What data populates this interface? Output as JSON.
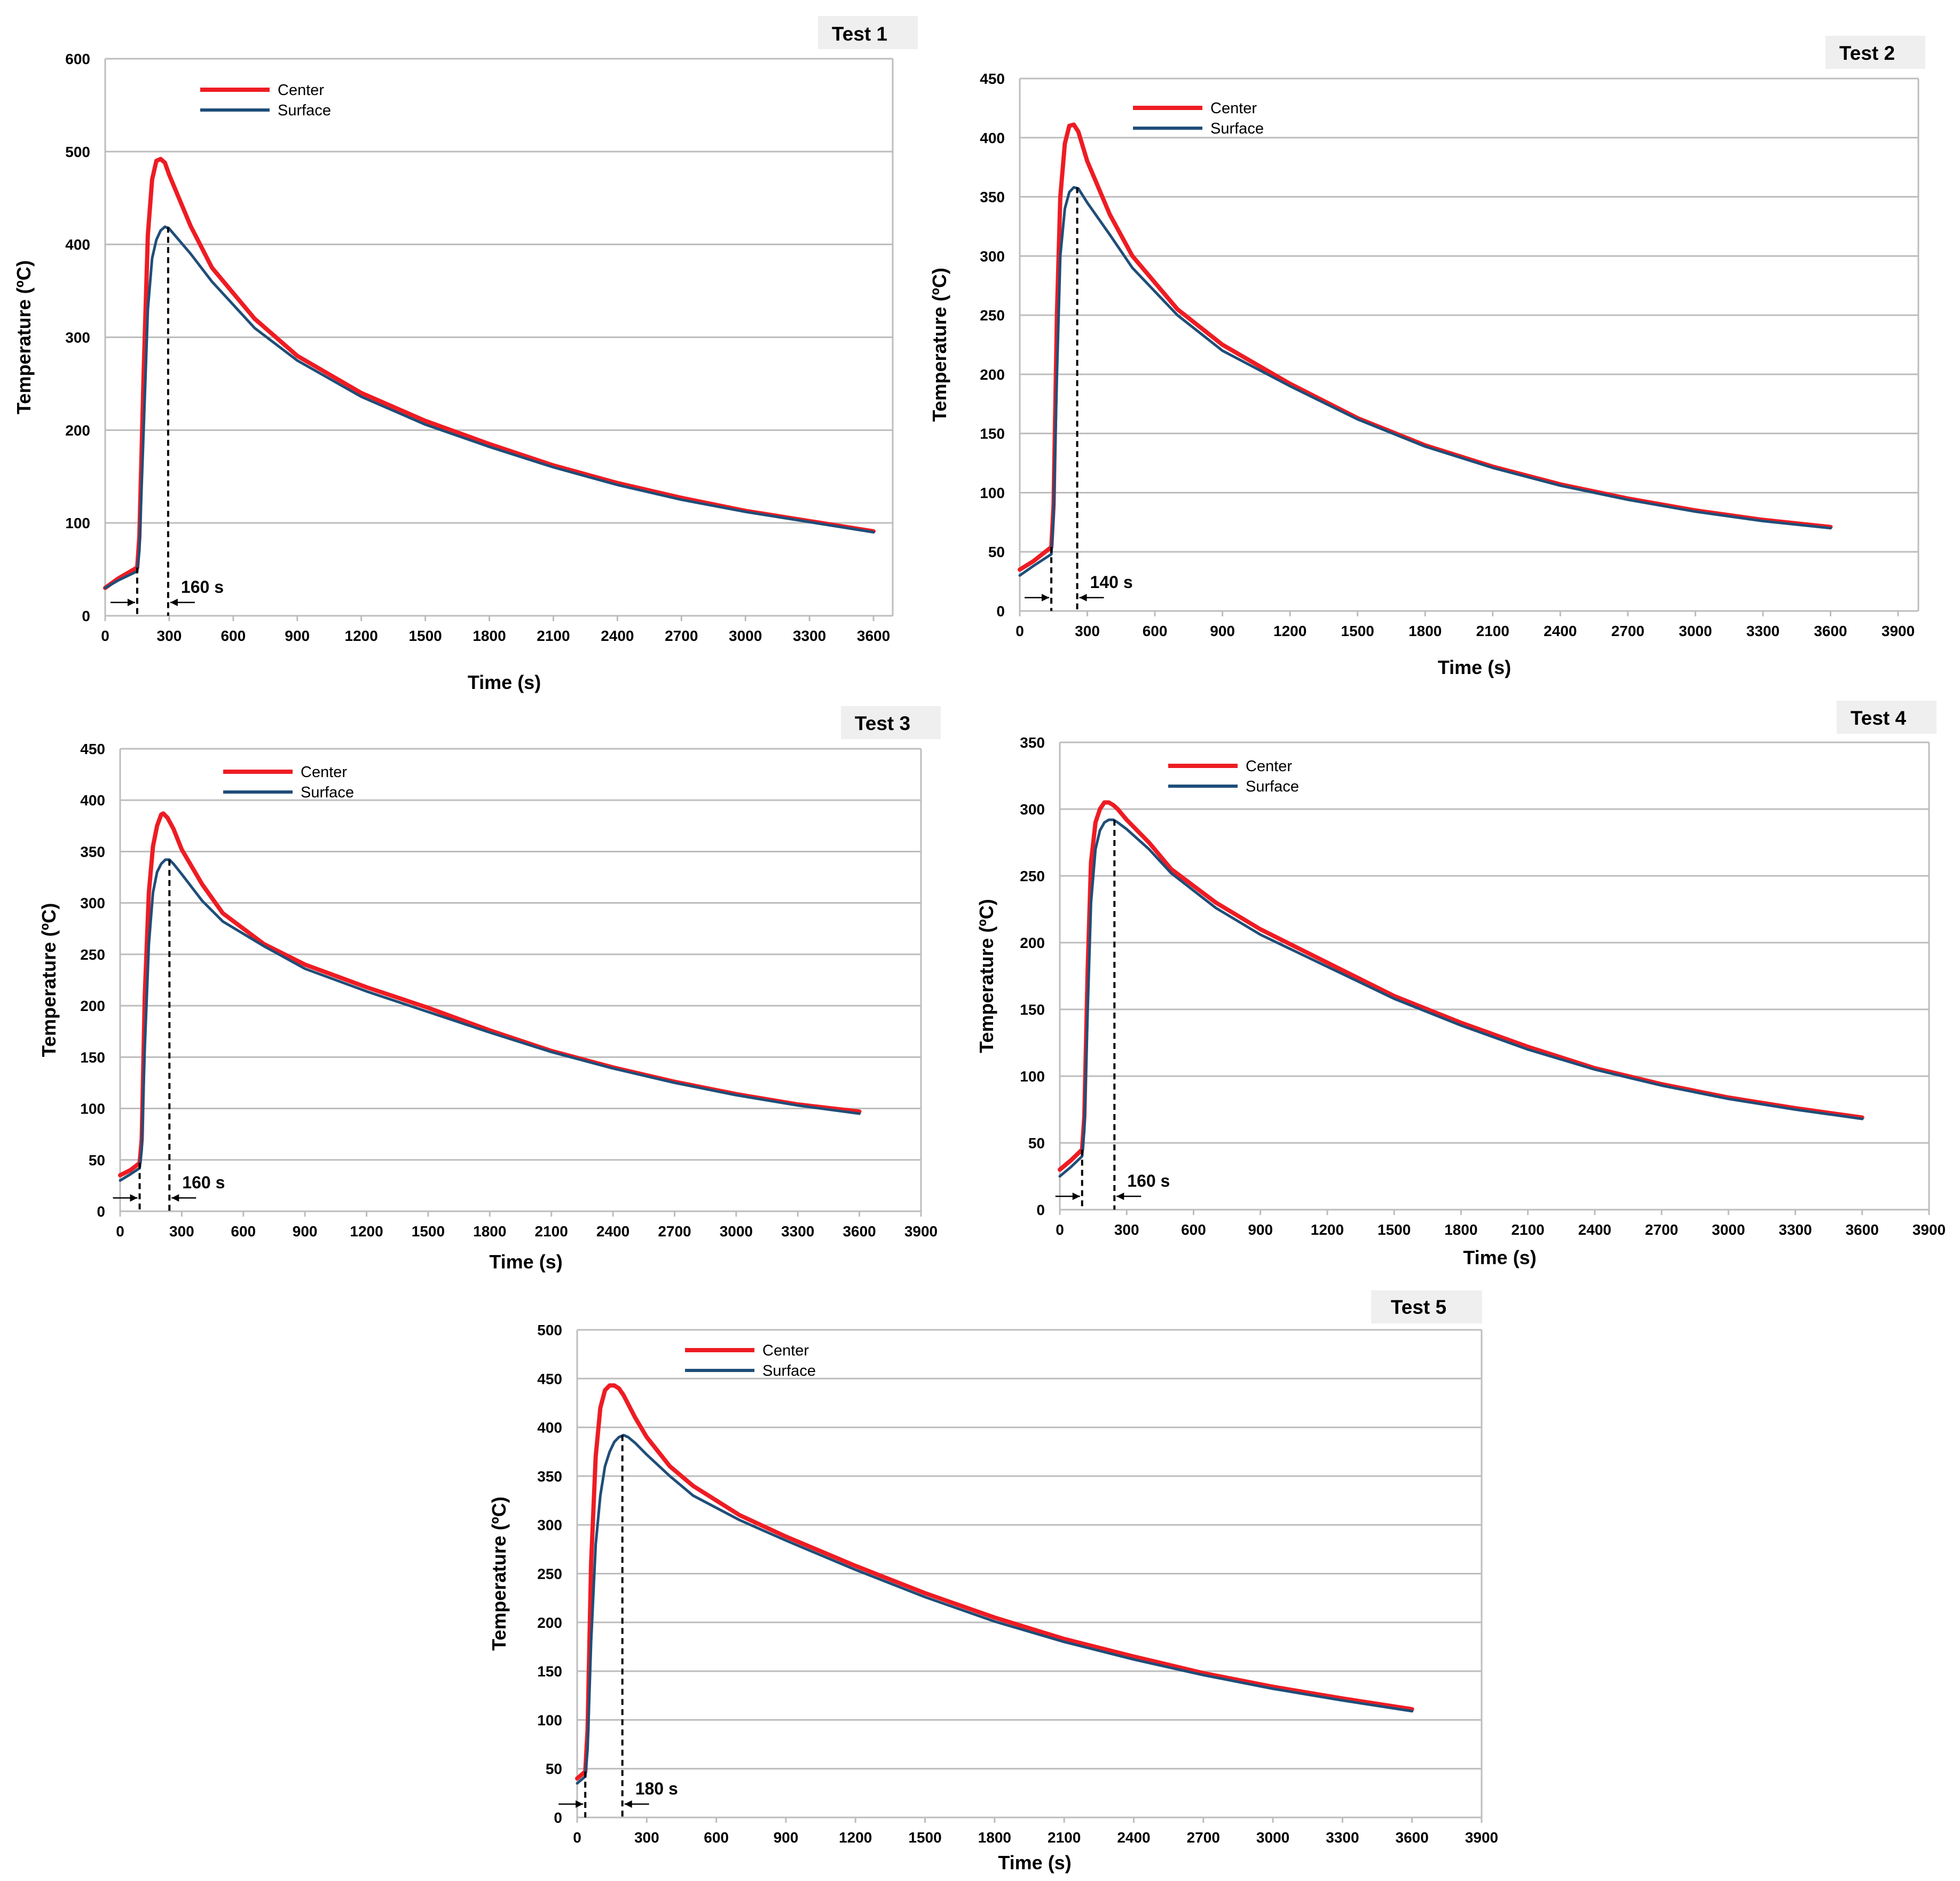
{
  "colors": {
    "center": "#ee1c23",
    "surface": "#1f4e79",
    "grid": "#bdbdbd"
  },
  "chart_data": [
    {
      "type": "line",
      "title": "Test 1",
      "xlabel": "Time (s)",
      "ylabel": "Temperature (ºC)",
      "xlim": [
        0,
        3690
      ],
      "ylim": [
        0,
        600
      ],
      "xticks": [
        0,
        300,
        600,
        900,
        1200,
        1500,
        1800,
        2100,
        2400,
        2700,
        3000,
        3300,
        3600
      ],
      "yticks": [
        0,
        100,
        200,
        300,
        400,
        500,
        600
      ],
      "grid": true,
      "legend_position": "top-left",
      "annotation": {
        "label": "160 s",
        "from": 150,
        "to": 295
      },
      "series": [
        {
          "name": "Center",
          "x": [
            0,
            60,
            150,
            160,
            180,
            200,
            220,
            240,
            260,
            280,
            300,
            400,
            500,
            700,
            900,
            1200,
            1500,
            1800,
            2100,
            2400,
            2700,
            3000,
            3300,
            3600
          ],
          "values": [
            30,
            40,
            52,
            85,
            260,
            410,
            470,
            490,
            492,
            488,
            475,
            420,
            375,
            320,
            280,
            240,
            210,
            185,
            162,
            143,
            127,
            113,
            102,
            91
          ]
        },
        {
          "name": "Surface",
          "x": [
            0,
            60,
            150,
            160,
            180,
            200,
            220,
            240,
            260,
            280,
            300,
            400,
            500,
            700,
            900,
            1200,
            1500,
            1800,
            2100,
            2400,
            2700,
            3000,
            3300,
            3600
          ],
          "values": [
            30,
            38,
            48,
            70,
            200,
            330,
            385,
            405,
            415,
            419,
            417,
            390,
            360,
            310,
            275,
            236,
            206,
            182,
            160,
            141,
            125,
            112,
            101,
            90
          ]
        }
      ]
    },
    {
      "type": "line",
      "title": "Test 2",
      "xlabel": "Time (s)",
      "ylabel": "Temperature (ºC)",
      "xlim": [
        0,
        3990
      ],
      "ylim": [
        0,
        450
      ],
      "xticks": [
        0,
        300,
        600,
        900,
        1200,
        1500,
        1800,
        2100,
        2400,
        2700,
        3000,
        3300,
        3600,
        3900
      ],
      "yticks": [
        0,
        50,
        100,
        150,
        200,
        250,
        300,
        350,
        400,
        450
      ],
      "grid": true,
      "legend_position": "top-left",
      "annotation": {
        "label": "140 s",
        "from": 140,
        "to": 255
      },
      "series": [
        {
          "name": "Center",
          "x": [
            0,
            60,
            140,
            150,
            165,
            180,
            200,
            220,
            240,
            260,
            300,
            400,
            500,
            700,
            900,
            1200,
            1500,
            1800,
            2100,
            2400,
            2700,
            3000,
            3300,
            3600
          ],
          "values": [
            35,
            42,
            54,
            90,
            250,
            350,
            395,
            410,
            411,
            405,
            380,
            335,
            300,
            255,
            225,
            192,
            163,
            140,
            122,
            107,
            95,
            85,
            77,
            71
          ]
        },
        {
          "name": "Surface",
          "x": [
            0,
            60,
            140,
            150,
            165,
            180,
            200,
            220,
            240,
            260,
            300,
            400,
            500,
            700,
            900,
            1200,
            1500,
            1800,
            2100,
            2400,
            2700,
            3000,
            3300,
            3600
          ],
          "values": [
            30,
            38,
            48,
            80,
            200,
            300,
            340,
            354,
            358,
            357,
            345,
            318,
            290,
            250,
            220,
            190,
            162,
            139,
            121,
            106,
            94,
            84,
            76,
            70
          ]
        }
      ]
    },
    {
      "type": "line",
      "title": "Test 3",
      "xlabel": "Time (s)",
      "ylabel": "Temperature (ºC)",
      "xlim": [
        0,
        3900
      ],
      "ylim": [
        0,
        450
      ],
      "xticks": [
        0,
        300,
        600,
        900,
        1200,
        1500,
        1800,
        2100,
        2400,
        2700,
        3000,
        3300,
        3600,
        3900
      ],
      "yticks": [
        0,
        50,
        100,
        150,
        200,
        250,
        300,
        350,
        400,
        450
      ],
      "grid": true,
      "legend_position": "top-left",
      "annotation": {
        "label": "160 s",
        "from": 95,
        "to": 240
      },
      "series": [
        {
          "name": "Center",
          "x": [
            0,
            50,
            95,
            105,
            120,
            140,
            160,
            180,
            200,
            210,
            230,
            260,
            300,
            400,
            500,
            700,
            900,
            1200,
            1500,
            1800,
            2100,
            2400,
            2700,
            3000,
            3300,
            3600
          ],
          "values": [
            35,
            40,
            47,
            70,
            210,
            310,
            355,
            375,
            386,
            387,
            383,
            372,
            352,
            318,
            290,
            260,
            240,
            218,
            198,
            176,
            156,
            140,
            126,
            114,
            104,
            97
          ]
        },
        {
          "name": "Surface",
          "x": [
            0,
            50,
            95,
            105,
            120,
            140,
            160,
            180,
            200,
            220,
            240,
            260,
            300,
            400,
            500,
            700,
            900,
            1200,
            1500,
            1800,
            2100,
            2400,
            2700,
            3000,
            3300,
            3600
          ],
          "values": [
            30,
            36,
            42,
            60,
            160,
            260,
            310,
            330,
            338,
            342,
            342,
            338,
            328,
            302,
            282,
            258,
            236,
            214,
            194,
            174,
            155,
            139,
            125,
            113,
            103,
            95
          ]
        }
      ]
    },
    {
      "type": "line",
      "title": "Test 4",
      "xlabel": "Time (s)",
      "ylabel": "Temperature (ºC)",
      "xlim": [
        0,
        3900
      ],
      "ylim": [
        0,
        350
      ],
      "xticks": [
        0,
        300,
        600,
        900,
        1200,
        1500,
        1800,
        2100,
        2400,
        2700,
        3000,
        3300,
        3600,
        3900
      ],
      "yticks": [
        0,
        50,
        100,
        150,
        200,
        250,
        300,
        350
      ],
      "grid": true,
      "legend_position": "top-left",
      "annotation": {
        "label": "160 s",
        "from": 100,
        "to": 245
      },
      "series": [
        {
          "name": "Center",
          "x": [
            0,
            50,
            100,
            110,
            125,
            140,
            160,
            180,
            200,
            220,
            240,
            260,
            300,
            400,
            500,
            700,
            900,
            1200,
            1500,
            1800,
            2100,
            2400,
            2700,
            3000,
            3300,
            3600
          ],
          "values": [
            30,
            37,
            45,
            70,
            180,
            260,
            290,
            300,
            305,
            305,
            303,
            300,
            292,
            275,
            255,
            230,
            210,
            185,
            160,
            140,
            122,
            106,
            94,
            84,
            76,
            69
          ]
        },
        {
          "name": "Surface",
          "x": [
            0,
            50,
            100,
            110,
            125,
            140,
            160,
            180,
            200,
            220,
            240,
            260,
            300,
            400,
            500,
            700,
            900,
            1200,
            1500,
            1800,
            2100,
            2400,
            2700,
            3000,
            3300,
            3600
          ],
          "values": [
            25,
            32,
            40,
            60,
            150,
            230,
            270,
            284,
            290,
            292,
            292,
            290,
            285,
            270,
            252,
            226,
            206,
            182,
            158,
            138,
            120,
            105,
            93,
            83,
            75,
            68
          ]
        }
      ]
    },
    {
      "type": "line",
      "title": "Test 5",
      "xlabel": "Time (s)",
      "ylabel": "Temperature (ºC)",
      "xlim": [
        0,
        3900
      ],
      "ylim": [
        0,
        500
      ],
      "xticks": [
        0,
        300,
        600,
        900,
        1200,
        1500,
        1800,
        2100,
        2400,
        2700,
        3000,
        3300,
        3600,
        3900
      ],
      "yticks": [
        0,
        50,
        100,
        150,
        200,
        250,
        300,
        350,
        400,
        450,
        500
      ],
      "grid": true,
      "legend_position": "top-left",
      "annotation": {
        "label": "180 s",
        "from": 35,
        "to": 195
      },
      "series": [
        {
          "name": "Center",
          "x": [
            0,
            35,
            45,
            60,
            80,
            100,
            120,
            140,
            160,
            180,
            200,
            250,
            300,
            400,
            500,
            700,
            900,
            1200,
            1500,
            1800,
            2100,
            2400,
            2700,
            3000,
            3300,
            3600
          ],
          "values": [
            40,
            47,
            90,
            260,
            370,
            420,
            438,
            443,
            443,
            440,
            433,
            410,
            390,
            360,
            340,
            310,
            288,
            258,
            230,
            205,
            183,
            165,
            148,
            134,
            122,
            111
          ]
        },
        {
          "name": "Surface",
          "x": [
            0,
            35,
            45,
            60,
            80,
            100,
            120,
            140,
            160,
            180,
            200,
            220,
            250,
            300,
            400,
            500,
            700,
            900,
            1200,
            1500,
            1800,
            2100,
            2400,
            2700,
            3000,
            3300,
            3600
          ],
          "values": [
            35,
            42,
            70,
            180,
            280,
            330,
            360,
            375,
            385,
            390,
            392,
            390,
            384,
            372,
            350,
            330,
            305,
            284,
            254,
            226,
            201,
            180,
            162,
            146,
            132,
            120,
            109
          ]
        }
      ]
    }
  ]
}
